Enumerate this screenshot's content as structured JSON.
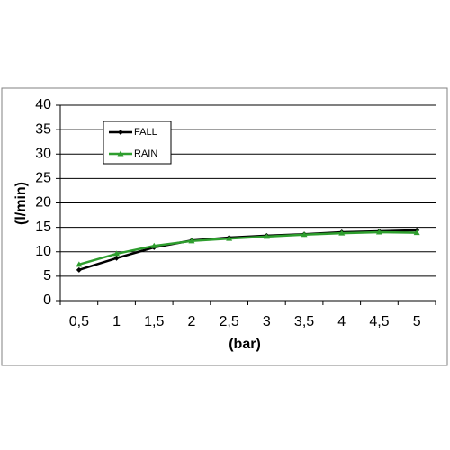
{
  "chart_data": {
    "type": "line",
    "categories": [
      "0,5",
      "1",
      "1,5",
      "2",
      "2,5",
      "3",
      "3,5",
      "4",
      "4,5",
      "5"
    ],
    "series": [
      {
        "name": "FALL",
        "color": "#000000",
        "values": [
          6.3,
          8.7,
          10.9,
          12.3,
          12.9,
          13.3,
          13.6,
          14.0,
          14.2,
          14.4
        ]
      },
      {
        "name": "RAIN",
        "color": "#2e9e2e",
        "values": [
          7.4,
          9.6,
          11.2,
          12.2,
          12.7,
          13.1,
          13.5,
          13.8,
          14.0,
          13.9
        ]
      }
    ],
    "y_label": "(l/min)",
    "x_label": "(bar)",
    "ylim": [
      0,
      40
    ],
    "yticks": [
      0,
      5,
      10,
      15,
      20,
      25,
      30,
      35,
      40
    ],
    "grid": true
  }
}
